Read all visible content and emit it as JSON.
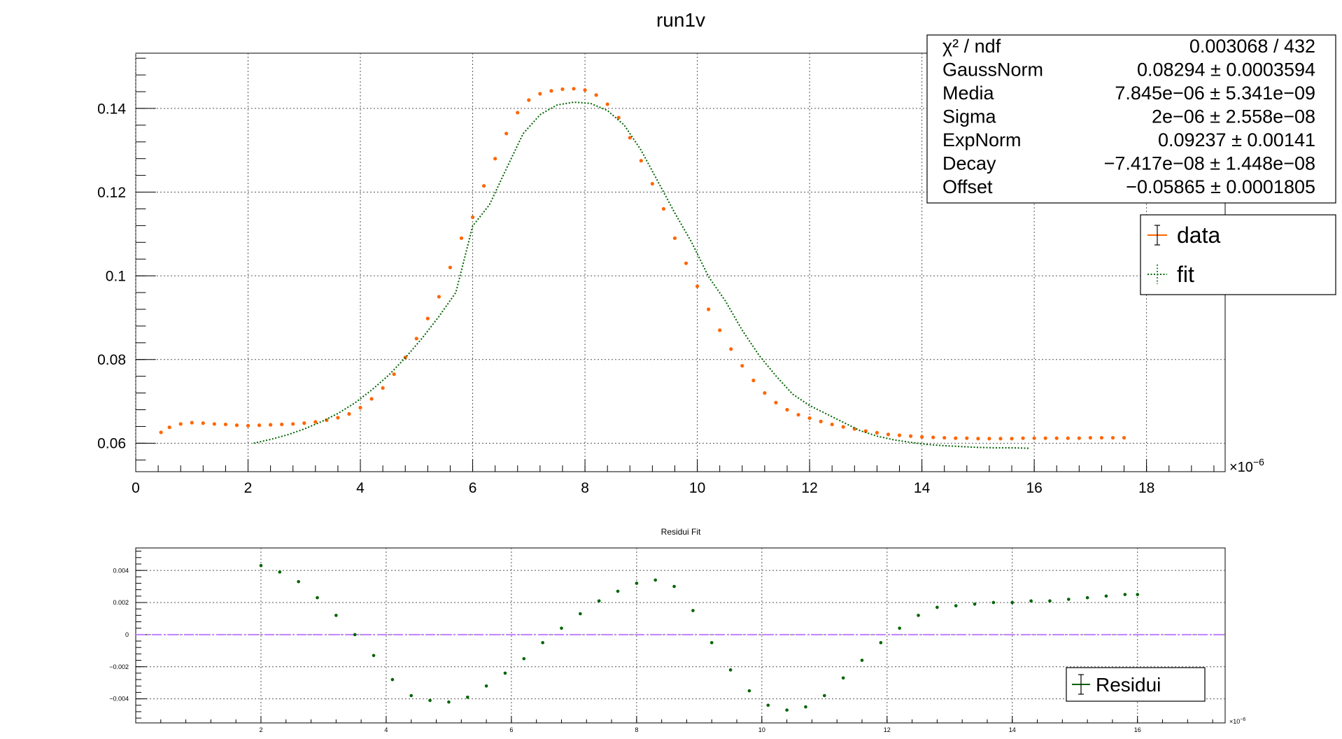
{
  "chart_data": [
    {
      "type": "scatter",
      "title": "run1v",
      "x_exponent_label": "×10",
      "x_exponent_power": "−6",
      "xlim": [
        0,
        19.4
      ],
      "ylim": [
        0.0532,
        0.1532
      ],
      "x_ticks": [
        0,
        2,
        4,
        6,
        8,
        10,
        12,
        14,
        16,
        18
      ],
      "x_tick_labels": [
        "0",
        "2",
        "4",
        "6",
        "8",
        "10",
        "12",
        "14",
        "16",
        "18"
      ],
      "y_ticks": [
        0.06,
        0.08,
        0.1,
        0.12,
        0.14
      ],
      "y_tick_labels": [
        "0.06",
        "0.08",
        "0.1",
        "0.12",
        "0.14"
      ],
      "grid": true,
      "colors": {
        "data": "#ff6600",
        "fit": "#006400"
      },
      "fit_params": {
        "GaussNorm": 0.08294,
        "Media": 7.845e-06,
        "Sigma": 2e-06,
        "ExpNorm": 0.09237,
        "Decay": -7.417e-08,
        "Offset": -0.05865
      },
      "series": [
        {
          "name": "data",
          "x": [
            0.45,
            0.6,
            0.8,
            1.0,
            1.2,
            1.4,
            1.6,
            1.8,
            2.0,
            2.2,
            2.4,
            2.6,
            2.8,
            3.0,
            3.2,
            3.4,
            3.6,
            3.8,
            4.0,
            4.2,
            4.4,
            4.6,
            4.8,
            5.0,
            5.2,
            5.4,
            5.6,
            5.8,
            6.0,
            6.2,
            6.4,
            6.6,
            6.8,
            7.0,
            7.2,
            7.4,
            7.6,
            7.8,
            8.0,
            8.2,
            8.4,
            8.6,
            8.8,
            9.0,
            9.2,
            9.4,
            9.6,
            9.8,
            10.0,
            10.2,
            10.4,
            10.6,
            10.8,
            11.0,
            11.2,
            11.4,
            11.6,
            11.8,
            12.0,
            12.2,
            12.4,
            12.6,
            12.8,
            13.0,
            13.2,
            13.4,
            13.6,
            13.8,
            14.0,
            14.2,
            14.4,
            14.6,
            14.8,
            15.0,
            15.2,
            15.4,
            15.6,
            15.8,
            16.0,
            16.2,
            16.4,
            16.6,
            16.8,
            17.0,
            17.2,
            17.4,
            17.6
          ],
          "y": [
            0.0626,
            0.0638,
            0.0646,
            0.0649,
            0.0648,
            0.0646,
            0.0645,
            0.0643,
            0.0642,
            0.0643,
            0.0644,
            0.0645,
            0.0646,
            0.0648,
            0.0651,
            0.0655,
            0.0661,
            0.067,
            0.0685,
            0.0706,
            0.0732,
            0.0765,
            0.0805,
            0.085,
            0.0898,
            0.095,
            0.102,
            0.109,
            0.114,
            0.1215,
            0.128,
            0.134,
            0.139,
            0.142,
            0.1435,
            0.1442,
            0.1446,
            0.1447,
            0.1444,
            0.1432,
            0.141,
            0.1378,
            0.133,
            0.1275,
            0.122,
            0.116,
            0.109,
            0.103,
            0.0975,
            0.092,
            0.087,
            0.0825,
            0.0785,
            0.075,
            0.072,
            0.0697,
            0.068,
            0.0668,
            0.066,
            0.0652,
            0.0645,
            0.0639,
            0.0634,
            0.0629,
            0.0625,
            0.0621,
            0.0619,
            0.0617,
            0.0615,
            0.0614,
            0.0613,
            0.0612,
            0.0612,
            0.0611,
            0.0611,
            0.0611,
            0.0611,
            0.0612,
            0.0612,
            0.0612,
            0.0612,
            0.0612,
            0.0612,
            0.0613,
            0.0613,
            0.0613,
            0.0613
          ]
        },
        {
          "name": "fit",
          "x": [
            2.1,
            2.4,
            2.7,
            3.0,
            3.3,
            3.6,
            3.9,
            4.2,
            4.5,
            4.8,
            5.1,
            5.4,
            5.7,
            6.0,
            6.3,
            6.6,
            6.9,
            7.2,
            7.5,
            7.8,
            8.1,
            8.4,
            8.7,
            9.0,
            9.3,
            9.6,
            9.9,
            10.2,
            10.5,
            10.8,
            11.1,
            11.4,
            11.7,
            12.0,
            12.3,
            12.6,
            12.9,
            13.2,
            13.5,
            13.8,
            14.1,
            14.4,
            14.7,
            15.0,
            15.3,
            15.6,
            15.9
          ],
          "y": [
            0.06,
            0.0609,
            0.062,
            0.0634,
            0.0651,
            0.0671,
            0.0696,
            0.0727,
            0.0762,
            0.0804,
            0.0851,
            0.0903,
            0.096,
            0.1119,
            0.117,
            0.1256,
            0.134,
            0.1385,
            0.1408,
            0.1415,
            0.1412,
            0.1395,
            0.136,
            0.13,
            0.1225,
            0.115,
            0.108,
            0.0998,
            0.094,
            0.087,
            0.081,
            0.0761,
            0.0717,
            0.069,
            0.067,
            0.065,
            0.063,
            0.0617,
            0.0608,
            0.0602,
            0.0597,
            0.0594,
            0.0592,
            0.059,
            0.0589,
            0.0589,
            0.0588
          ]
        }
      ],
      "legend": {
        "position": "top-right",
        "entries": [
          {
            "label": "data"
          },
          {
            "label": "fit"
          }
        ]
      },
      "stats_box": {
        "position": "top-right",
        "rows": [
          {
            "name": "χ² / ndf",
            "value": "0.003068 / 432"
          },
          {
            "name": "GaussNorm",
            "value": "0.08294 ± 0.0003594"
          },
          {
            "name": "Media",
            "value": "7.845e−06 ± 5.341e−09"
          },
          {
            "name": "Sigma",
            "value": "2e−06 ± 2.558e−08"
          },
          {
            "name": "ExpNorm",
            "value": "0.09237 ± 0.00141"
          },
          {
            "name": "Decay",
            "value": "−7.417e−08 ± 1.448e−08"
          },
          {
            "name": "Offset",
            "value": "−0.05865 ± 0.0001805"
          }
        ]
      }
    },
    {
      "type": "scatter",
      "title": "Residui Fit",
      "x_exponent_label": "×10",
      "x_exponent_power": "−6",
      "xlim": [
        0,
        17.4
      ],
      "ylim": [
        -0.0055,
        0.0054
      ],
      "x_ticks": [
        2,
        4,
        6,
        8,
        10,
        12,
        14,
        16
      ],
      "x_tick_labels": [
        "2",
        "4",
        "6",
        "8",
        "10",
        "12",
        "14",
        "16"
      ],
      "y_ticks": [
        -0.004,
        -0.002,
        0,
        0.002,
        0.004
      ],
      "y_tick_labels": [
        "−0.004",
        "−0.002",
        "0",
        "0.002",
        "0.004"
      ],
      "grid": true,
      "zero_line_color": "#c080ff",
      "colors": {
        "Residui": "#006400"
      },
      "series": [
        {
          "name": "Residui",
          "x": [
            2.0,
            2.3,
            2.6,
            2.9,
            3.2,
            3.5,
            3.8,
            4.1,
            4.4,
            4.7,
            5.0,
            5.3,
            5.6,
            5.9,
            6.2,
            6.5,
            6.8,
            7.1,
            7.4,
            7.7,
            8.0,
            8.3,
            8.6,
            8.9,
            9.2,
            9.5,
            9.8,
            10.1,
            10.4,
            10.7,
            11.0,
            11.3,
            11.6,
            11.9,
            12.2,
            12.5,
            12.8,
            13.1,
            13.4,
            13.7,
            14.0,
            14.3,
            14.6,
            14.9,
            15.2,
            15.5,
            15.8,
            16.0
          ],
          "y": [
            0.0043,
            0.0039,
            0.0033,
            0.0023,
            0.0012,
            0.0,
            -0.0013,
            -0.0028,
            -0.0038,
            -0.0041,
            -0.0042,
            -0.0039,
            -0.0032,
            -0.0024,
            -0.0015,
            -0.0005,
            0.0004,
            0.0013,
            0.0021,
            0.0027,
            0.0032,
            0.0034,
            0.003,
            0.0015,
            -0.0005,
            -0.0022,
            -0.0035,
            -0.0044,
            -0.0047,
            -0.0045,
            -0.0038,
            -0.0027,
            -0.0016,
            -0.0005,
            0.0004,
            0.0012,
            0.0017,
            0.0018,
            0.0019,
            0.002,
            0.002,
            0.0021,
            0.0021,
            0.0022,
            0.0023,
            0.0024,
            0.0025,
            0.0025
          ]
        }
      ],
      "legend": {
        "position": "bottom-right",
        "entries": [
          {
            "label": "Residui"
          }
        ]
      }
    }
  ]
}
